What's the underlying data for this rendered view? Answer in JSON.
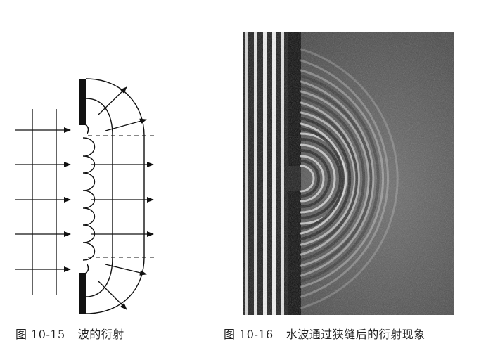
{
  "figures": [
    {
      "number": "图 10-15",
      "caption": "波的衍射"
    },
    {
      "number": "图 10-16",
      "caption": "水波通过狭缝后的衍射现象"
    }
  ]
}
